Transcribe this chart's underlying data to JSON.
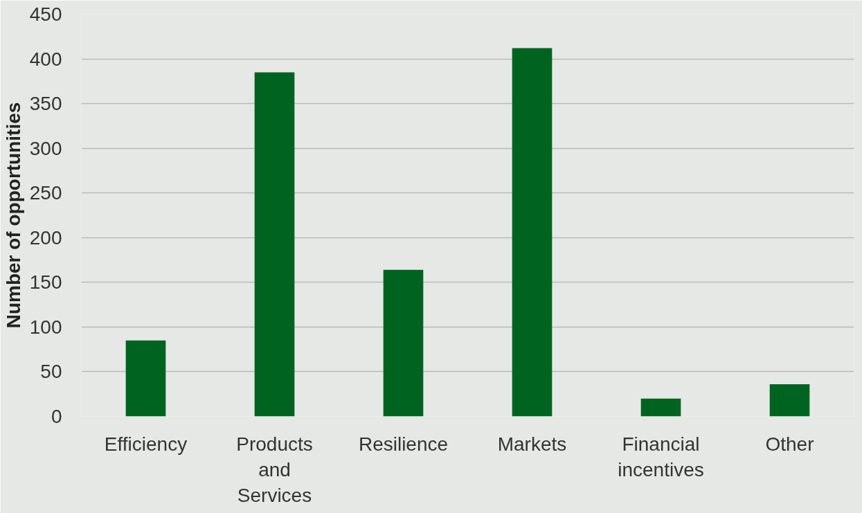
{
  "chart_data": {
    "type": "bar",
    "ylabel": "Number of opportunities",
    "categories": [
      "Efficiency",
      "Products and Services",
      "Resilience",
      "Markets",
      "Financial incentives",
      "Other"
    ],
    "values": [
      85,
      385,
      164,
      412,
      20,
      36
    ],
    "color": "#006420",
    "ylim": [
      0,
      450
    ],
    "yticks": [
      0,
      50,
      100,
      150,
      200,
      250,
      300,
      350,
      400,
      450
    ],
    "grid": "y"
  }
}
